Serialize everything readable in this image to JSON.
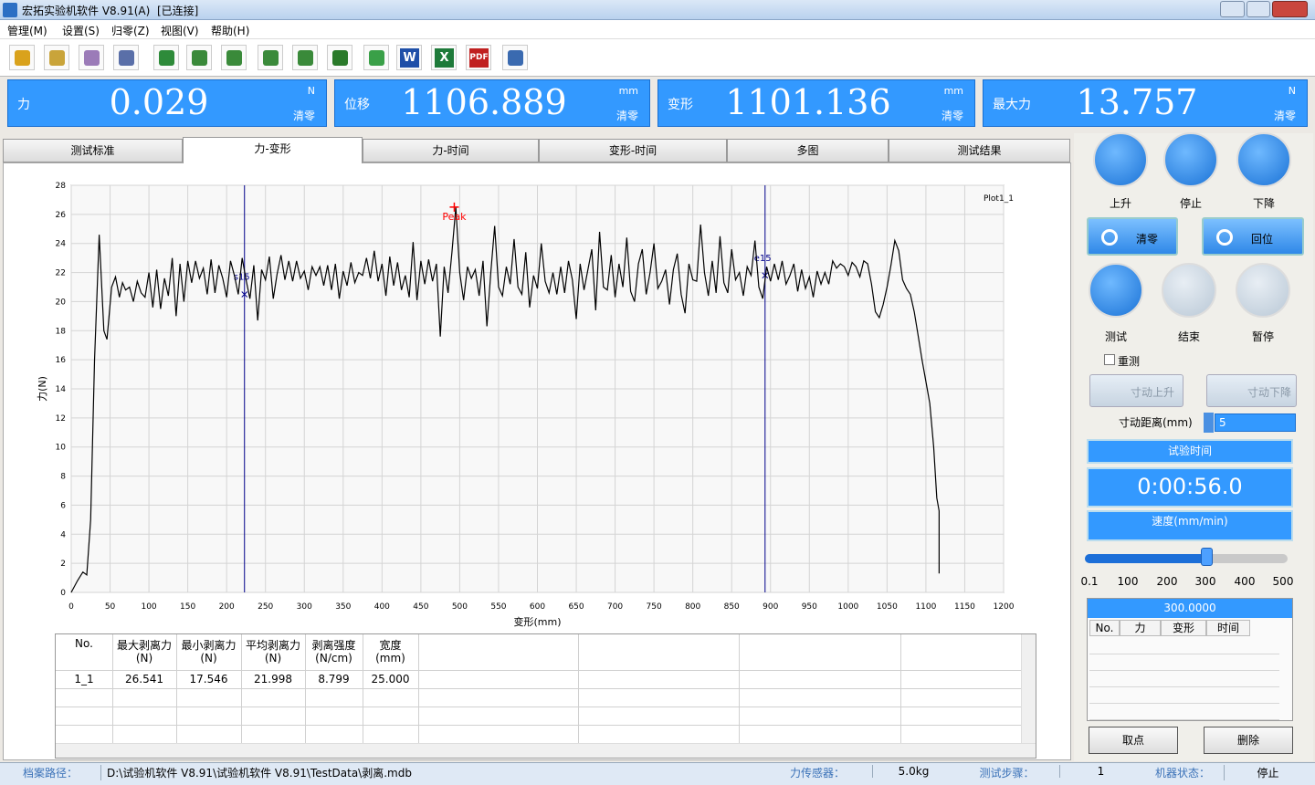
{
  "window": {
    "title": "宏拓实验机软件 V8.91(A)",
    "status": "[已连接]"
  },
  "menu": [
    "管理(M)",
    "设置(S)",
    "归零(Z)",
    "视图(V)",
    "帮助(H)"
  ],
  "toolbar_text": {
    "word": "W",
    "excel": "X",
    "pdf": "PDF"
  },
  "readouts": [
    {
      "label": "力",
      "value": "0.029",
      "unit": "N",
      "action": "清零"
    },
    {
      "label": "位移",
      "value": "1106.889",
      "unit": "mm",
      "action": "清零"
    },
    {
      "label": "变形",
      "value": "1101.136",
      "unit": "mm",
      "action": "清零"
    },
    {
      "label": "最大力",
      "value": "13.757",
      "unit": "N",
      "action": "清零"
    }
  ],
  "tabs": {
    "items": [
      "测试标准",
      "力-变形",
      "力-时间",
      "变形-时间",
      "多图",
      "测试结果"
    ],
    "active": 1
  },
  "chart_data": {
    "type": "line",
    "x_label": "变形(mm)",
    "y_label": "力(N)",
    "plot_label": "Plot1_1",
    "xlim": [
      0,
      1200
    ],
    "xticks": [
      0,
      50,
      100,
      150,
      200,
      250,
      300,
      350,
      400,
      450,
      500,
      550,
      600,
      650,
      700,
      750,
      800,
      850,
      900,
      950,
      1000,
      1050,
      1100,
      1150,
      1200
    ],
    "ylim": [
      0,
      28
    ],
    "yticks": [
      0,
      2,
      4,
      6,
      8,
      10,
      12,
      14,
      16,
      18,
      20,
      22,
      24,
      26,
      28
    ],
    "grid": true,
    "x": [
      0,
      8,
      15,
      20,
      25,
      30,
      36,
      42,
      46,
      52,
      57,
      62,
      66,
      70,
      75,
      80,
      85,
      90,
      95,
      100,
      105,
      110,
      115,
      120,
      125,
      130,
      135,
      140,
      145,
      150,
      155,
      160,
      165,
      170,
      175,
      180,
      185,
      190,
      195,
      200,
      205,
      210,
      215,
      220,
      225,
      230,
      235,
      240,
      245,
      250,
      255,
      260,
      265,
      270,
      275,
      280,
      285,
      290,
      295,
      300,
      305,
      310,
      315,
      320,
      325,
      330,
      335,
      340,
      345,
      350,
      355,
      360,
      365,
      370,
      375,
      380,
      385,
      390,
      395,
      400,
      405,
      410,
      415,
      420,
      425,
      430,
      435,
      440,
      445,
      450,
      455,
      460,
      465,
      470,
      475,
      480,
      485,
      490,
      495,
      500,
      505,
      510,
      515,
      520,
      525,
      530,
      535,
      540,
      545,
      550,
      555,
      560,
      565,
      570,
      575,
      580,
      585,
      590,
      595,
      600,
      605,
      610,
      615,
      620,
      625,
      630,
      635,
      640,
      645,
      650,
      655,
      660,
      665,
      670,
      675,
      680,
      685,
      690,
      695,
      700,
      705,
      710,
      715,
      720,
      725,
      730,
      735,
      740,
      745,
      750,
      755,
      760,
      765,
      770,
      775,
      780,
      785,
      790,
      795,
      800,
      805,
      810,
      815,
      820,
      825,
      830,
      835,
      840,
      845,
      850,
      855,
      860,
      865,
      870,
      875,
      880,
      885,
      890,
      895,
      900,
      905,
      910,
      915,
      920,
      925,
      930,
      935,
      940,
      945,
      950,
      955,
      960,
      965,
      970,
      975,
      980,
      985,
      990,
      995,
      1000,
      1005,
      1010,
      1015,
      1020,
      1025,
      1030,
      1035,
      1040,
      1045,
      1050,
      1055,
      1060,
      1065,
      1070,
      1075,
      1080,
      1085,
      1089,
      1095,
      1100,
      1105,
      1110,
      1114,
      1117,
      1117
    ],
    "series": [
      {
        "color": "#000000",
        "values": [
          0,
          0.8,
          1.4,
          1.2,
          5,
          16,
          24.6,
          18,
          17.4,
          21,
          21.7,
          20.3,
          21.3,
          20.8,
          21,
          20,
          21.4,
          20.6,
          20.3,
          22,
          19.6,
          22.2,
          19.5,
          21.6,
          20.4,
          23,
          19,
          22.6,
          20,
          22.8,
          21.3,
          22.8,
          21.6,
          22.3,
          20.5,
          22.9,
          20.6,
          22.5,
          21.6,
          20.3,
          22.8,
          21.8,
          20.5,
          23,
          21.5,
          20.2,
          22.5,
          18.7,
          22.2,
          21.5,
          23.1,
          20.2,
          21.9,
          23.2,
          21.5,
          22.8,
          21.4,
          22.8,
          21.6,
          22.1,
          20.8,
          22.4,
          21.8,
          22.4,
          21.1,
          22.5,
          20.8,
          22.6,
          20.2,
          22.1,
          21.1,
          22.7,
          21.3,
          22,
          21.8,
          23,
          21.6,
          23.5,
          21.4,
          22.6,
          20.4,
          23.1,
          21.1,
          22.7,
          20.8,
          21.8,
          20.3,
          24.1,
          20.1,
          22.8,
          21.2,
          22.9,
          21.4,
          22.6,
          17.6,
          22.4,
          20.6,
          23.4,
          26.5,
          22,
          20.1,
          22.4,
          21.6,
          22.2,
          20.4,
          22.8,
          18.3,
          22,
          25.2,
          21,
          20.4,
          22.4,
          21.2,
          24.3,
          21,
          20.5,
          23.4,
          19.6,
          21.8,
          20.9,
          24,
          21.4,
          20.6,
          22,
          20.5,
          22.4,
          20.6,
          22.8,
          21.5,
          18.8,
          22.6,
          20.8,
          22.2,
          23.6,
          19.4,
          24.8,
          21,
          20.8,
          23.2,
          20.3,
          22.6,
          21,
          24.4,
          20.7,
          20,
          22.6,
          23.6,
          20.5,
          22,
          24,
          20.9,
          21.4,
          22.2,
          19.8,
          22.2,
          23.3,
          20.5,
          19.2,
          22.6,
          21.5,
          21.4,
          25.3,
          22,
          20.4,
          22.8,
          20.6,
          24.5,
          21.3,
          20.6,
          23.6,
          21.5,
          22,
          20.4,
          22.4,
          21.8,
          24.2,
          21,
          20.2,
          22.4,
          21.4,
          22.6,
          21.5,
          22.8,
          21.2,
          21.8,
          22.6,
          20.7,
          22.2,
          20.9,
          21.7,
          20.3,
          22.1,
          21.2,
          22,
          21.2,
          22.8,
          22.3,
          22.6,
          22.4,
          21.8,
          22.7,
          22.4,
          21.7,
          22.8,
          22.6,
          21.2,
          19.3,
          18.9,
          19.8,
          21,
          22.5,
          24.2,
          23.5,
          21.5,
          20.9,
          20.5,
          19.3,
          18,
          16,
          14.5,
          13,
          10,
          6.5,
          5.6,
          1.3
        ]
      }
    ],
    "markers": [
      {
        "label": "s15",
        "x": 223,
        "y": 20.5,
        "color": "#00008b"
      },
      {
        "label": "e15",
        "x": 893,
        "y": 21.8,
        "color": "#00008b"
      }
    ],
    "peak": {
      "label": "Peak",
      "x": 493,
      "y": 26.5,
      "color": "#ff0000"
    }
  },
  "result_table": {
    "headers": [
      [
        "No."
      ],
      [
        "最大剥离力",
        "(N)"
      ],
      [
        "最小剥离力",
        "(N)"
      ],
      [
        "平均剥离力",
        "(N)"
      ],
      [
        "剥离强度",
        "(N/cm)"
      ],
      [
        "宽度",
        "(mm)"
      ]
    ],
    "rows": [
      [
        "1_1",
        "26.541",
        "17.546",
        "21.998",
        "8.799",
        "25.000"
      ]
    ]
  },
  "controls": {
    "jog_buttons": [
      "上升",
      "停止",
      "下降"
    ],
    "function_buttons": [
      "清零",
      "回位"
    ],
    "run_buttons": [
      "测试",
      "结束",
      "暂停"
    ],
    "retest": "重测",
    "inch_buttons": [
      "寸动上升",
      "寸动下降"
    ],
    "inch_label": "寸动距离(mm)",
    "inch_value": "5",
    "time_title": "试验时间",
    "time_value": "0:00:56.0",
    "speed_title": "速度(mm/min)",
    "slider_ticks": [
      "0.1",
      "100",
      "200",
      "300",
      "400",
      "500"
    ],
    "point_value": "300.0000",
    "point_headers": [
      "No.",
      "力",
      "变形",
      "时间"
    ],
    "point_buttons": [
      "取点",
      "删除"
    ]
  },
  "status_bar": [
    {
      "label": "档案路径：",
      "value": "D:\\试验机软件 V8.91\\试验机软件 V8.91\\TestData\\剥离.mdb"
    },
    {
      "label": "力传感器：",
      "value": "5.0kg"
    },
    {
      "label": "测试步骤：",
      "value": "1"
    },
    {
      "label": "机器状态：",
      "value": "停止"
    }
  ]
}
